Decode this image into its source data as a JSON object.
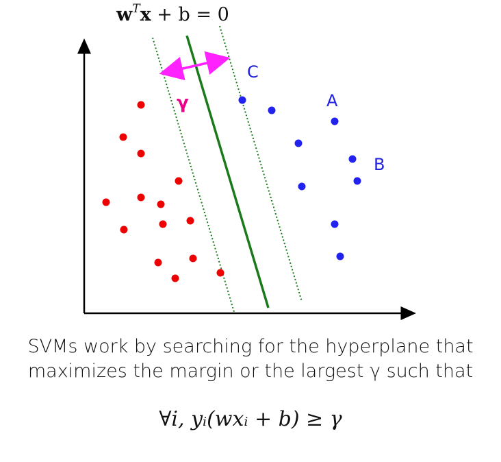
{
  "equation": {
    "lhs_bold": "w",
    "sup": "T",
    "x_bold": "x",
    "rest": " + b = 0"
  },
  "labels": {
    "C": "C",
    "A": "A",
    "B": "B",
    "gamma": "γ"
  },
  "caption": {
    "line1": "SVMs work by searching for the hyperplane that",
    "line2": "maximizes the margin or the largest γ such that"
  },
  "formula": "∀i, yᵢ(wxᵢ + b) ≥ γ",
  "colors": {
    "class_neg": "#ee0000",
    "class_pos": "#2222ee",
    "hyperplane": "#1a7a1a",
    "margin_arrow": "#ff22ff",
    "gamma": "#ee0088",
    "label": "#2222dd"
  }
}
